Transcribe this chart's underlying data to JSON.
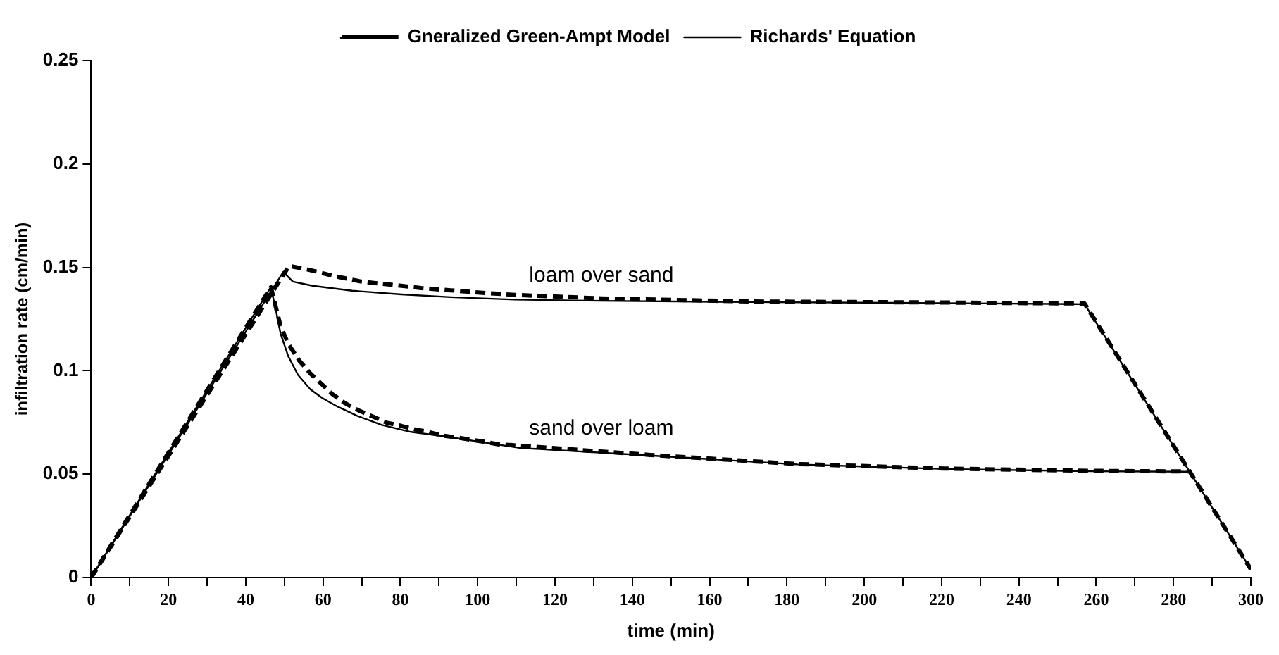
{
  "chart_data": {
    "type": "line",
    "xlabel": "time (min)",
    "ylabel": "infiltration rate (cm/min)",
    "xlim": [
      0,
      300
    ],
    "ylim": [
      0,
      0.25
    ],
    "xticks": [
      0,
      {
        "value": 10,
        "label": null
      },
      20,
      {
        "value": 30,
        "label": null
      },
      40,
      {
        "value": 50,
        "label": null
      },
      60,
      {
        "value": 70,
        "label": null
      },
      80,
      {
        "value": 90,
        "label": null
      },
      100,
      {
        "value": 110,
        "label": null
      },
      120,
      {
        "value": 130,
        "label": null
      },
      140,
      {
        "value": 150,
        "label": null
      },
      160,
      {
        "value": 170,
        "label": null
      },
      180,
      {
        "value": 190,
        "label": null
      },
      200,
      {
        "value": 210,
        "label": null
      },
      220,
      {
        "value": 230,
        "label": null
      },
      240,
      {
        "value": 250,
        "label": null
      },
      260,
      {
        "value": 270,
        "label": null
      },
      280,
      {
        "value": 290,
        "label": null
      },
      300
    ],
    "yticks": [
      0,
      0.05,
      0.1,
      0.15,
      0.2,
      0.25
    ],
    "grid": false,
    "legend": "top",
    "marker": "none",
    "series": [
      {
        "name": "Gneralized Green-Ampt Model",
        "color": "#000000",
        "line_style": "dashed",
        "x": [
          0,
          51.2,
          56,
          62.4,
          70,
          77.7,
          85.4,
          93,
          100.6,
          109.6,
          131.9,
          170,
          220,
          257,
          300
        ],
        "values": [
          0,
          0.1507,
          0.149,
          0.146,
          0.1431,
          0.1416,
          0.14,
          0.1389,
          0.1378,
          0.1367,
          0.135,
          0.1335,
          0.133,
          0.1325,
          0.004
        ]
      },
      {
        "name": "Richards' Equation",
        "color": "#000000",
        "line_style": "solid",
        "x": [
          0,
          49.7,
          52.2,
          57.3,
          67.5,
          80.3,
          93,
          109.6,
          131.9,
          170,
          220,
          257,
          300
        ],
        "values": [
          0,
          0.1478,
          0.1431,
          0.1411,
          0.1387,
          0.1369,
          0.1356,
          0.1344,
          0.1338,
          0.1332,
          0.1327,
          0.1322,
          0.004
        ]
      },
      {
        "color": "#000000",
        "line_style": "dashed",
        "x": [
          0,
          46.5,
          49,
          51,
          53.8,
          56.7,
          59.5,
          62.4,
          65.6,
          69,
          72.9,
          76.4,
          80.3,
          83.8,
          87.3,
          90.7,
          94.3,
          98.1,
          101.9,
          105.5,
          109,
          144.6,
          182.7,
          220.8,
          258.9,
          283.7
        ],
        "values": [
          0,
          0.1404,
          0.1216,
          0.113,
          0.105,
          0.0987,
          0.0938,
          0.0887,
          0.0844,
          0.081,
          0.0778,
          0.0749,
          0.0733,
          0.0716,
          0.0704,
          0.0687,
          0.0678,
          0.0667,
          0.0656,
          0.0644,
          0.064,
          0.0593,
          0.0549,
          0.0527,
          0.0516,
          0.0513
        ]
      },
      {
        "color": "#000000",
        "line_style": "solid",
        "x": [
          0,
          46.5,
          47.8,
          49,
          51,
          53.5,
          56.7,
          59.9,
          63.7,
          68.8,
          75.2,
          82.8,
          91.7,
          100.6,
          110.8,
          144.6,
          182.7,
          220.8,
          258.9,
          283.7
        ],
        "values": [
          0,
          0.1404,
          0.1293,
          0.118,
          0.107,
          0.098,
          0.091,
          0.0867,
          0.0827,
          0.0782,
          0.0738,
          0.0704,
          0.0682,
          0.0656,
          0.0627,
          0.059,
          0.0547,
          0.0525,
          0.0514,
          0.0512
        ]
      }
    ],
    "annotations": [
      "loam over sand",
      "sand over loam"
    ]
  }
}
